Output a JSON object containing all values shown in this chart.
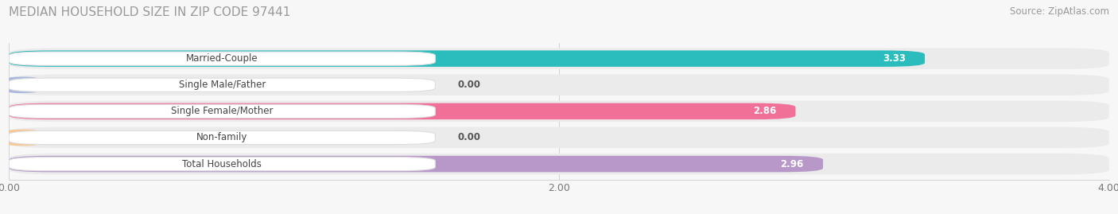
{
  "title": "MEDIAN HOUSEHOLD SIZE IN ZIP CODE 97441",
  "source": "Source: ZipAtlas.com",
  "categories": [
    "Married-Couple",
    "Single Male/Father",
    "Single Female/Mother",
    "Non-family",
    "Total Households"
  ],
  "values": [
    3.33,
    0.0,
    2.86,
    0.0,
    2.96
  ],
  "bar_colors": [
    "#2BBCBD",
    "#A8B8DF",
    "#F07098",
    "#F5C896",
    "#B898C8"
  ],
  "xlim": [
    0,
    4.0
  ],
  "xticks": [
    0.0,
    2.0,
    4.0
  ],
  "title_fontsize": 11,
  "source_fontsize": 8.5,
  "bar_label_fontsize": 8.5,
  "value_fontsize": 8.5,
  "tick_fontsize": 9,
  "bg_color": "#F7F7F7",
  "bar_bg_color": "#EBEBEB",
  "label_box_color": "#FFFFFF",
  "figsize": [
    14.06,
    2.69
  ],
  "dpi": 100
}
